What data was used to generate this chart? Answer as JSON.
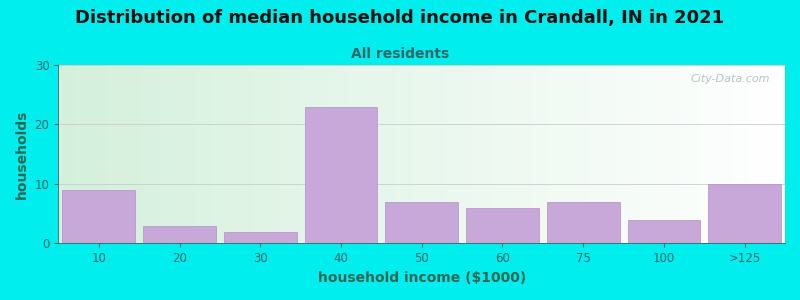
{
  "title": "Distribution of median household income in Crandall, IN in 2021",
  "subtitle": "All residents",
  "xlabel": "household income ($1000)",
  "ylabel": "households",
  "background_color": "#00EEEE",
  "bar_color": "#c8a8d8",
  "bar_edge_color": "#b090c8",
  "categories": [
    "10",
    "20",
    "30",
    "40",
    "50",
    "60",
    "75",
    "100",
    ">125"
  ],
  "values": [
    9,
    3,
    2,
    23,
    7,
    6,
    7,
    4,
    10
  ],
  "bar_positions": [
    0,
    1,
    2,
    3,
    4,
    5,
    6,
    7,
    8
  ],
  "ylim": [
    0,
    30
  ],
  "yticks": [
    0,
    10,
    20,
    30
  ],
  "title_fontsize": 13,
  "subtitle_fontsize": 10,
  "axis_label_fontsize": 10,
  "tick_fontsize": 8.5,
  "watermark_text": "City-Data.com",
  "title_color": "#111111",
  "subtitle_color": "#336666",
  "axis_label_color": "#336655",
  "tick_color": "#336666",
  "grid_color": "#cccccc",
  "watermark_color": "#aabbbb",
  "grad_left": "#d4f0dc",
  "grad_right": "#ffffff"
}
